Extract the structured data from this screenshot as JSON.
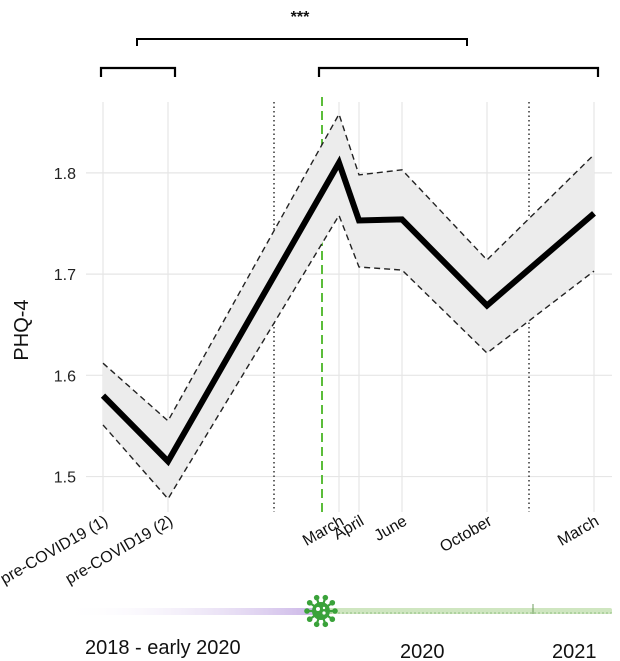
{
  "chart_data": {
    "type": "line",
    "ylabel": "PHQ-4",
    "ylim": [
      1.465,
      1.87
    ],
    "yticks": [
      1.5,
      1.6,
      1.7,
      1.8
    ],
    "yticklabels": [
      "1.5",
      "1.6",
      "1.7",
      "1.8"
    ],
    "grid": true,
    "x_categories": [
      "pre-COVID19 (1)",
      "pre-COVID19 (2)",
      "March",
      "April",
      "June",
      "October",
      "March"
    ],
    "series": [
      {
        "values": [
          1.58,
          1.515,
          1.81,
          1.753,
          1.754,
          1.669,
          1.76
        ],
        "upper": [
          1.612,
          1.555,
          1.858,
          1.798,
          1.803,
          1.714,
          1.818
        ],
        "lower": [
          1.551,
          1.478,
          1.758,
          1.707,
          1.704,
          1.622,
          1.703
        ],
        "color": "#000000",
        "band_color": "#ececec"
      }
    ],
    "vertical_markers": [
      {
        "style": "dotted",
        "color": "#333333",
        "meaning": "period boundary"
      },
      {
        "style": "dashed",
        "color": "#5bbd3a",
        "meaning": "pandemic onset"
      },
      {
        "style": "dotted",
        "color": "#333333",
        "meaning": "year boundary"
      }
    ],
    "significance": {
      "label": "***"
    },
    "timeline": {
      "periods": [
        "2018 - early 2020",
        "2020",
        "2021"
      ],
      "pre_color": "#c9b3e6",
      "post_color": "#cfe6c0",
      "virus_icon": "virus-icon",
      "virus_color": "#3aa23a"
    }
  }
}
